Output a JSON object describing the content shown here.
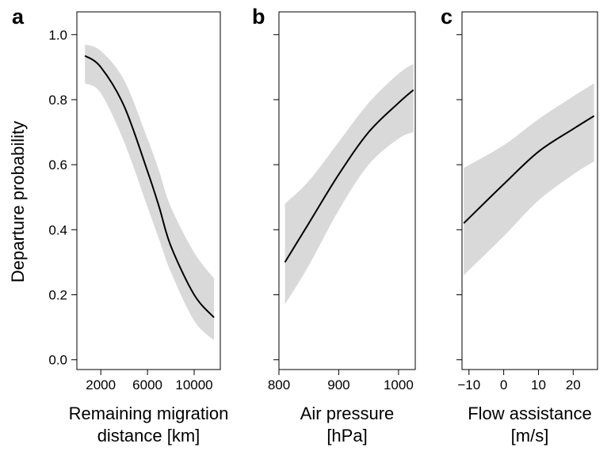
{
  "chart_data": [
    {
      "type": "line",
      "panel": "a",
      "ylabel": "Departure probability",
      "xlabel": [
        "Remaining migration",
        "distance [km]"
      ],
      "x": [
        644,
        2000,
        4000,
        6000,
        7000,
        8000,
        10000,
        11700
      ],
      "values": [
        0.935,
        0.9,
        0.78,
        0.58,
        0.47,
        0.35,
        0.2,
        0.13
      ],
      "lower": [
        0.85,
        0.82,
        0.67,
        0.47,
        0.37,
        0.27,
        0.12,
        0.06
      ],
      "upper": [
        0.97,
        0.95,
        0.86,
        0.68,
        0.58,
        0.47,
        0.33,
        0.25
      ],
      "color": "#000000",
      "band_color": "#d9d9d9",
      "xlim": [
        -50,
        12240
      ],
      "xticks": [
        2000,
        6000,
        10000
      ],
      "ylim": [
        -0.03,
        1.07
      ],
      "yticks": [
        {
          "value": 0,
          "label": "0.0"
        },
        0.2,
        0.4,
        0.6,
        0.8,
        {
          "value": 1,
          "label": "1.0"
        }
      ]
    },
    {
      "type": "line",
      "panel": "b",
      "xlabel": [
        "Air pressure",
        "[hPa]"
      ],
      "x": [
        810,
        850,
        900,
        950,
        1000,
        1025
      ],
      "values": [
        0.3,
        0.42,
        0.57,
        0.7,
        0.79,
        0.83
      ],
      "lower": [
        0.17,
        0.29,
        0.46,
        0.6,
        0.68,
        0.7
      ],
      "upper": [
        0.48,
        0.55,
        0.67,
        0.79,
        0.88,
        0.91
      ],
      "color": "#000000",
      "band_color": "#d9d9d9",
      "xlim": [
        800,
        1028
      ],
      "xticks": [
        800,
        900,
        1000
      ]
    },
    {
      "type": "line",
      "panel": "c",
      "xlabel": [
        "Flow assistance",
        "[m/s]"
      ],
      "x": [
        -11.5,
        0,
        10,
        20,
        26
      ],
      "values": [
        0.42,
        0.54,
        0.64,
        0.71,
        0.75
      ],
      "lower": [
        0.26,
        0.38,
        0.49,
        0.57,
        0.61
      ],
      "upper": [
        0.59,
        0.66,
        0.74,
        0.81,
        0.85
      ],
      "color": "#000000",
      "band_color": "#d9d9d9",
      "xlim": [
        -12,
        27
      ],
      "xticks": [
        {
          "value": -10,
          "label": "−10"
        },
        0,
        10,
        20
      ]
    }
  ]
}
